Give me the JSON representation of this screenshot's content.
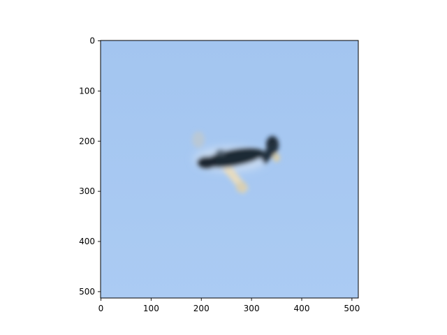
{
  "image_panel": {
    "subject": "airplane-in-sky",
    "sky_color": "#a4c6f1",
    "sky_color_bottom": "#abcbf3",
    "aircraft_dark_color": "#1f2a34",
    "aircraft_light_color": "#e8dcc0"
  },
  "axes": {
    "x": {
      "range": [
        0,
        512
      ],
      "ticks": [
        0,
        100,
        200,
        300,
        400,
        500
      ],
      "tick_labels": [
        "0",
        "100",
        "200",
        "300",
        "400",
        "500"
      ]
    },
    "y": {
      "range": [
        0,
        512
      ],
      "inverted": true,
      "ticks": [
        0,
        100,
        200,
        300,
        400,
        500
      ],
      "tick_labels": [
        "0",
        "100",
        "200",
        "300",
        "400",
        "500"
      ]
    }
  }
}
